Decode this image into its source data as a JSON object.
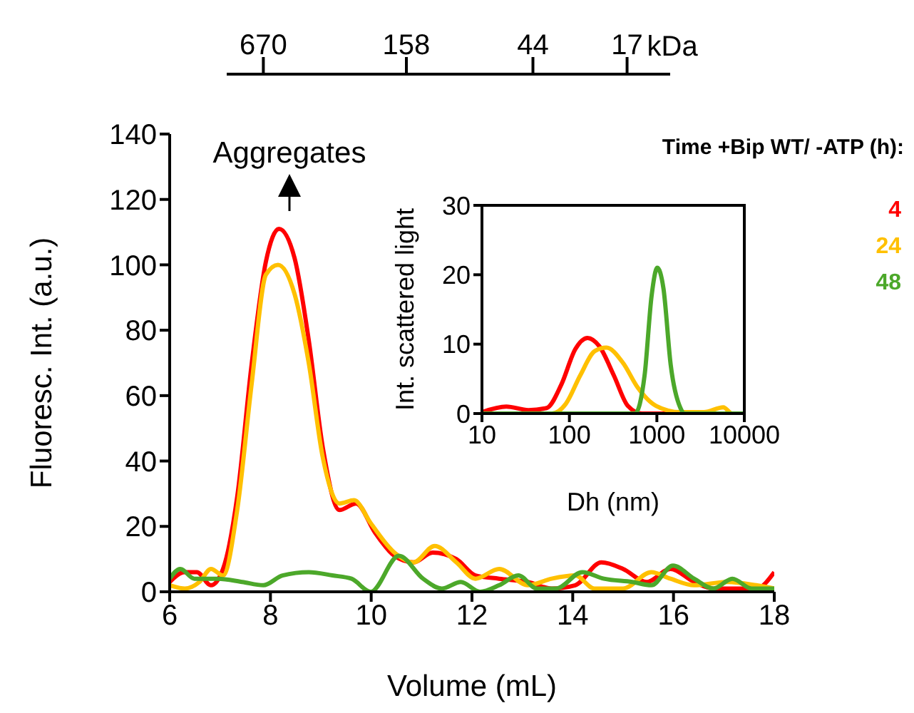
{
  "chart_data": [
    {
      "type": "line",
      "xlabel": "Volume (mL)",
      "ylabel": "Fluoresc. Int. (a.u.)",
      "xlim": [
        6,
        18
      ],
      "xticks": [
        6,
        8,
        10,
        12,
        14,
        16,
        18
      ],
      "ylim": [
        0,
        140
      ],
      "yticks": [
        0,
        20,
        40,
        60,
        80,
        100,
        120,
        140
      ],
      "x2lim": [
        970,
        11
      ],
      "x2ticks": [
        670,
        158,
        44,
        17
      ],
      "x2label": "kDa",
      "log": "x2",
      "legend_title": "Time +Bip WT/ -ATP (h):",
      "legend": "top right",
      "marker": "none",
      "annotations": [
        "Aggregates"
      ],
      "series": [
        {
          "name": "4",
          "color": "#ff0000",
          "x": [
            6.0,
            6.3,
            6.54,
            6.82,
            7.06,
            7.34,
            7.63,
            7.91,
            8.17,
            8.48,
            8.76,
            9.04,
            9.37,
            9.7,
            10.08,
            10.46,
            10.84,
            11.22,
            11.69,
            12.07,
            12.54,
            13.11,
            13.58,
            14.05,
            14.57,
            15.0,
            15.47,
            15.94,
            16.41,
            16.79,
            17.26,
            17.64,
            18.0
          ],
          "values": [
            3,
            6,
            6,
            2,
            7,
            29,
            70,
            101,
            111,
            102,
            77,
            44,
            25,
            27,
            18,
            11,
            9,
            12,
            10,
            5,
            4,
            3,
            1,
            2,
            9,
            7,
            3,
            7,
            3,
            1,
            1,
            1,
            6
          ]
        },
        {
          "name": "24",
          "color": "#ffc000",
          "x": [
            6.0,
            6.3,
            6.59,
            6.82,
            7.06,
            7.34,
            7.63,
            7.91,
            8.15,
            8.48,
            8.76,
            9.04,
            9.37,
            9.66,
            9.99,
            10.46,
            10.84,
            11.26,
            11.69,
            12.07,
            12.54,
            13.11,
            13.58,
            14.05,
            14.43,
            15.0,
            15.56,
            15.94,
            16.41,
            17.07,
            17.64,
            18.0
          ],
          "values": [
            2,
            1,
            3,
            7,
            5,
            25,
            64,
            97,
            100,
            91,
            70,
            41,
            27,
            28,
            21,
            12,
            9,
            14,
            9,
            4,
            7,
            2,
            4,
            5,
            1,
            1,
            6,
            4,
            2,
            3,
            2,
            1
          ]
        },
        {
          "name": "48",
          "color": "#4ca82a",
          "x": [
            6.0,
            6.21,
            6.49,
            6.96,
            7.44,
            7.86,
            8.24,
            8.76,
            9.23,
            9.61,
            9.99,
            10.55,
            11.03,
            11.4,
            11.78,
            12.16,
            12.54,
            12.92,
            13.29,
            13.67,
            14.19,
            14.62,
            15.18,
            15.56,
            15.99,
            16.41,
            16.79,
            17.17,
            17.55,
            18.0
          ],
          "values": [
            4,
            7,
            4,
            4,
            3,
            2,
            5,
            6,
            5,
            4,
            0,
            11,
            4,
            1,
            3,
            0,
            2,
            5,
            1,
            1,
            6,
            4,
            3,
            2,
            8,
            4,
            1,
            4,
            1,
            1
          ]
        }
      ]
    },
    {
      "type": "line",
      "xlabel": "Dh (nm)",
      "ylabel": "Int. scattered light",
      "log": "x",
      "xlim": [
        10,
        10000
      ],
      "xticks": [
        10,
        100,
        1000,
        10000
      ],
      "ylim": [
        0,
        30
      ],
      "yticks": [
        0,
        10,
        20,
        30
      ],
      "marker": "none",
      "series": [
        {
          "color": "#ff0000",
          "x": [
            10,
            19,
            34,
            55,
            81,
            117,
            161,
            220,
            322,
            466,
            675,
            10000
          ],
          "values": [
            0.2,
            1,
            0.5,
            0.8,
            4.2,
            9.3,
            10.9,
            9.7,
            5.5,
            1.1,
            0,
            0
          ]
        },
        {
          "color": "#ffc000",
          "x": [
            10,
            63,
            91,
            133,
            195,
            265,
            410,
            600,
            982,
            1860,
            3450,
            5760,
            7240,
            10000
          ],
          "values": [
            0,
            0,
            1.4,
            5.5,
            9,
            9.5,
            7.3,
            3.8,
            1.1,
            0.2,
            0.2,
            0.9,
            0,
            0
          ]
        },
        {
          "color": "#4ca82a",
          "x": [
            10,
            562,
            724,
            871,
            1012,
            1190,
            1440,
            1860,
            2090,
            10000
          ],
          "values": [
            0,
            0,
            5.5,
            17,
            21,
            18,
            7,
            0.8,
            0,
            0
          ]
        }
      ]
    }
  ]
}
